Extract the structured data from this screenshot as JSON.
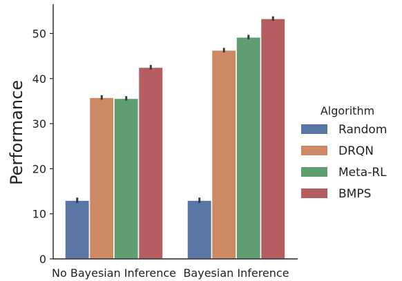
{
  "chart_data": {
    "type": "bar",
    "title": "",
    "xlabel": "",
    "ylabel": "Performance",
    "ylim": [
      0,
      56.5
    ],
    "yticks": [
      0,
      10,
      20,
      30,
      40,
      50
    ],
    "grid": false,
    "categories": [
      "No Bayesian Inference",
      "Bayesian Inference"
    ],
    "legend": {
      "title": "Algorithm",
      "placement": "right"
    },
    "series": [
      {
        "name": "Random",
        "color": "#5875a4",
        "values": [
          13.0,
          13.0
        ],
        "errors": [
          0.6,
          0.6
        ]
      },
      {
        "name": "DRQN",
        "color": "#cc8963",
        "values": [
          35.8,
          46.3
        ],
        "errors": [
          0.5,
          0.5
        ]
      },
      {
        "name": "Meta-RL",
        "color": "#5f9e6e",
        "values": [
          35.6,
          49.2
        ],
        "errors": [
          0.5,
          0.5
        ]
      },
      {
        "name": "BMPS",
        "color": "#b55d60",
        "values": [
          42.5,
          53.3
        ],
        "errors": [
          0.5,
          0.5
        ]
      }
    ]
  }
}
